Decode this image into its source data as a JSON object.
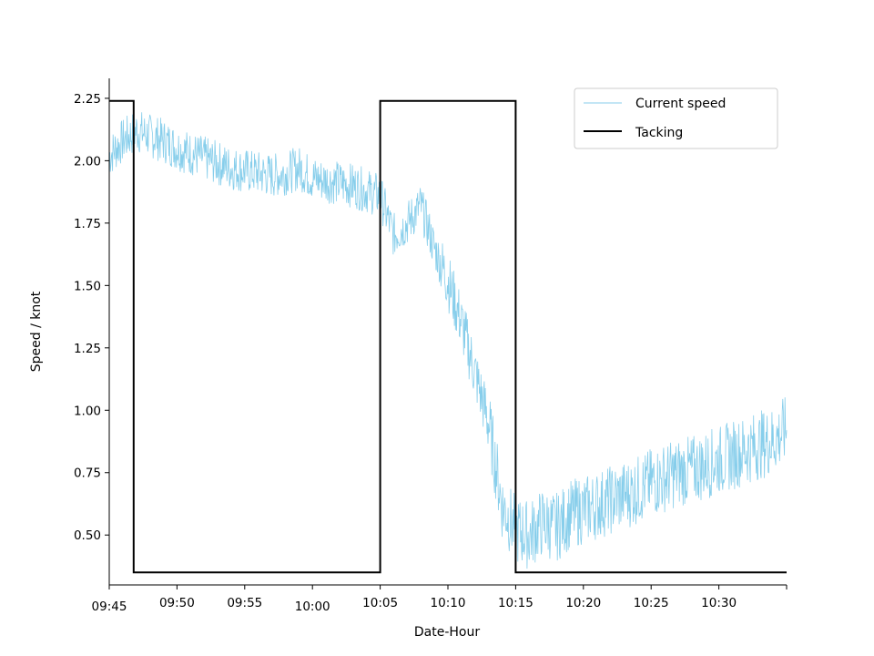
{
  "chart_data": {
    "type": "line",
    "title": "",
    "xlabel": "Date-Hour",
    "ylabel": "Speed / knot",
    "x_ticks": [
      "09:45",
      "09:50",
      "09:55",
      "10:00",
      "10:05",
      "10:10",
      "10:15",
      "10:20",
      "10:25",
      "10:30"
    ],
    "x_tick_minutes_after_0945": [
      0,
      5,
      10,
      15,
      20,
      25,
      30,
      35,
      40,
      45
    ],
    "xlim_minutes_after_0945": [
      0,
      50
    ],
    "y_ticks": [
      "0.50",
      "0.75",
      "1.00",
      "1.25",
      "1.50",
      "1.75",
      "2.00",
      "2.25"
    ],
    "ylim": [
      0.3,
      2.33
    ],
    "grid": false,
    "legend_position": "top-right",
    "series": [
      {
        "name": "Current speed",
        "color": "#87ceeb",
        "minutes_after_0945": [
          0,
          1,
          2,
          3,
          4,
          5,
          6,
          7,
          8,
          9,
          10,
          11,
          12,
          13,
          14,
          15,
          16,
          17,
          18,
          19,
          20,
          21,
          22,
          23,
          24,
          25,
          26,
          27,
          28,
          29,
          30,
          31,
          32,
          33,
          34,
          35,
          36,
          37,
          38,
          39,
          40,
          41,
          42,
          43,
          44,
          45,
          46,
          47,
          48,
          49,
          50
        ],
        "values": [
          2.02,
          2.08,
          2.12,
          2.1,
          2.08,
          2.05,
          2.03,
          2.01,
          1.99,
          1.97,
          1.96,
          1.95,
          1.94,
          1.95,
          1.97,
          1.93,
          1.92,
          1.91,
          1.9,
          1.88,
          1.86,
          1.7,
          1.75,
          1.82,
          1.65,
          1.52,
          1.35,
          1.15,
          0.95,
          0.62,
          0.52,
          0.5,
          0.55,
          0.53,
          0.58,
          0.6,
          0.62,
          0.64,
          0.66,
          0.68,
          0.71,
          0.73,
          0.75,
          0.76,
          0.78,
          0.8,
          0.82,
          0.84,
          0.86,
          0.88,
          0.92
        ]
      },
      {
        "name": "Tacking",
        "color": "#000000",
        "minutes_after_0945": [
          0,
          1.8,
          1.8,
          20.0,
          20.0,
          30.0,
          30.0,
          50
        ],
        "values": [
          2.24,
          2.24,
          0.35,
          0.35,
          2.24,
          2.24,
          0.35,
          0.35
        ]
      }
    ]
  }
}
